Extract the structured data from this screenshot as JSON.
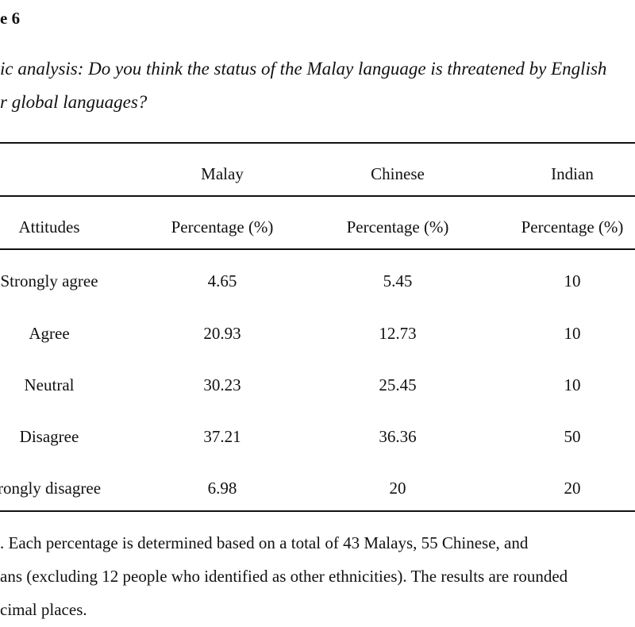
{
  "table_label": "e 6",
  "title_lines": [
    "ic analysis: Do you think the status of the Malay language is threatened by English",
    "r global languages?"
  ],
  "group_headers": [
    "",
    "Malay",
    "Chinese",
    "Indian"
  ],
  "column_headers": [
    "Attitudes",
    "Percentage (%)",
    "Percentage (%)",
    "Percentage (%)"
  ],
  "rows": [
    [
      "Strongly agree",
      "4.65",
      "5.45",
      "10"
    ],
    [
      "Agree",
      "20.93",
      "12.73",
      "10"
    ],
    [
      "Neutral",
      "30.23",
      "25.45",
      "10"
    ],
    [
      "Disagree",
      "37.21",
      "36.36",
      "50"
    ],
    [
      "rongly disagree",
      "6.98",
      "20",
      "20"
    ]
  ],
  "note_lines": [
    ". Each percentage is determined based on a total of 43 Malays, 55 Chinese, and",
    "ans (excluding 12 people who identified as other ethnicities). The results are rounded",
    "cimal places."
  ]
}
